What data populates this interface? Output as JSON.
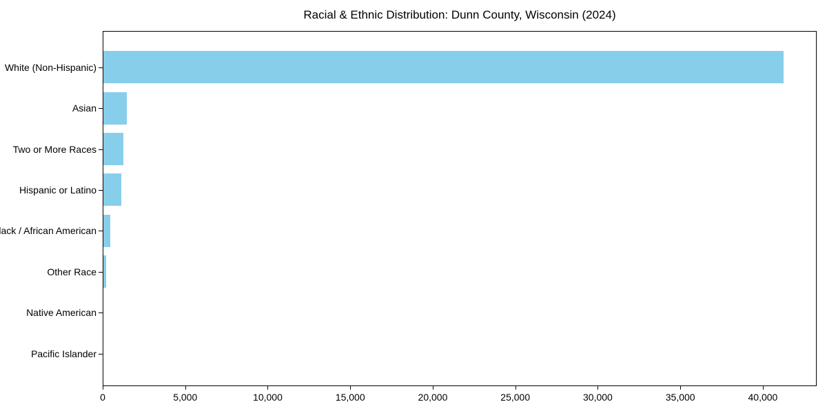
{
  "chart_data": {
    "type": "bar",
    "orientation": "horizontal",
    "title": "Racial & Ethnic Distribution: Dunn County, Wisconsin (2024)",
    "categories": [
      "White (Non-Hispanic)",
      "Asian",
      "Two or More Races",
      "Hispanic or Latino",
      "Black / African American",
      "Other Race",
      "Native American",
      "Pacific Islander"
    ],
    "values": [
      41200,
      1400,
      1200,
      1100,
      400,
      150,
      0,
      0
    ],
    "xlabel": "",
    "ylabel": "",
    "xlim": [
      0,
      43260
    ],
    "xticks": [
      0,
      5000,
      10000,
      15000,
      20000,
      25000,
      30000,
      35000,
      40000
    ],
    "xtick_labels": [
      "0",
      "5,000",
      "10,000",
      "15,000",
      "20,000",
      "25,000",
      "30,000",
      "35,000",
      "40,000"
    ],
    "bar_color": "#87CEEB",
    "frame_color": "#000000",
    "text_color": "#000000",
    "background_color": "#ffffff",
    "grid": false,
    "legend": null
  }
}
